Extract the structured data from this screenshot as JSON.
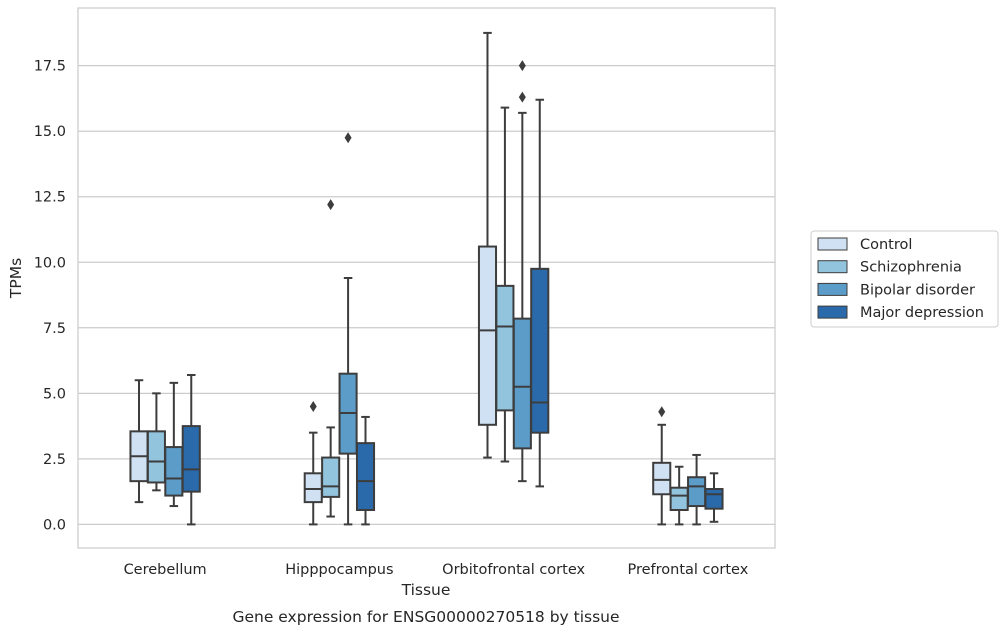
{
  "chart_data": {
    "type": "box",
    "title": "Gene expression for ENSG00000270518 by tissue",
    "xlabel": "Tissue",
    "ylabel": "TPMs",
    "categories": [
      "Cerebellum",
      "Hipppocampus",
      "Orbitofrontal cortex",
      "Prefrontal cortex"
    ],
    "yticks": [
      "0.0",
      "2.5",
      "5.0",
      "7.5",
      "10.0",
      "12.5",
      "15.0",
      "17.5"
    ],
    "ylim": [
      -0.9,
      19.7
    ],
    "grid": "horizontal",
    "legend_position": "right",
    "series": [
      {
        "name": "Control",
        "color": "#cfe1f2",
        "boxes": [
          {
            "whislo": 0.85,
            "q1": 1.65,
            "med": 2.6,
            "q3": 3.55,
            "whishi": 5.5,
            "fliers": []
          },
          {
            "whislo": 0.0,
            "q1": 0.85,
            "med": 1.35,
            "q3": 1.95,
            "whishi": 3.5,
            "fliers": [
              4.5
            ]
          },
          {
            "whislo": 2.55,
            "q1": 3.8,
            "med": 7.4,
            "q3": 10.6,
            "whishi": 18.75,
            "fliers": []
          },
          {
            "whislo": 0.0,
            "q1": 1.15,
            "med": 1.7,
            "q3": 2.35,
            "whishi": 3.8,
            "fliers": [
              4.3
            ]
          }
        ]
      },
      {
        "name": "Schizophrenia",
        "color": "#93c4de",
        "boxes": [
          {
            "whislo": 1.3,
            "q1": 1.6,
            "med": 2.4,
            "q3": 3.55,
            "whishi": 5.0,
            "fliers": []
          },
          {
            "whislo": 0.3,
            "q1": 1.05,
            "med": 1.45,
            "q3": 2.55,
            "whishi": 3.7,
            "fliers": [
              12.2
            ]
          },
          {
            "whislo": 2.4,
            "q1": 4.35,
            "med": 7.55,
            "q3": 9.1,
            "whishi": 15.9,
            "fliers": []
          },
          {
            "whislo": 0.0,
            "q1": 0.55,
            "med": 1.1,
            "q3": 1.4,
            "whishi": 2.2,
            "fliers": []
          }
        ]
      },
      {
        "name": "Bipolar disorder",
        "color": "#5b9cc9",
        "boxes": [
          {
            "whislo": 0.7,
            "q1": 1.1,
            "med": 1.75,
            "q3": 2.95,
            "whishi": 5.4,
            "fliers": []
          },
          {
            "whislo": 0.0,
            "q1": 2.7,
            "med": 4.25,
            "q3": 5.75,
            "whishi": 9.4,
            "fliers": [
              14.75
            ]
          },
          {
            "whislo": 1.65,
            "q1": 2.9,
            "med": 5.25,
            "q3": 7.85,
            "whishi": 15.7,
            "fliers": [
              16.3,
              17.5
            ]
          },
          {
            "whislo": 0.0,
            "q1": 0.7,
            "med": 1.45,
            "q3": 1.8,
            "whishi": 2.65,
            "fliers": []
          }
        ]
      },
      {
        "name": "Major depression",
        "color": "#2a6aab",
        "boxes": [
          {
            "whislo": 0.0,
            "q1": 1.25,
            "med": 2.1,
            "q3": 3.75,
            "whishi": 5.7,
            "fliers": []
          },
          {
            "whislo": 0.0,
            "q1": 0.55,
            "med": 1.65,
            "q3": 3.1,
            "whishi": 4.1,
            "fliers": []
          },
          {
            "whislo": 1.45,
            "q1": 3.5,
            "med": 4.65,
            "q3": 9.75,
            "whishi": 16.2,
            "fliers": []
          },
          {
            "whislo": 0.1,
            "q1": 0.6,
            "med": 1.15,
            "q3": 1.35,
            "whishi": 1.95,
            "fliers": []
          }
        ]
      }
    ]
  }
}
